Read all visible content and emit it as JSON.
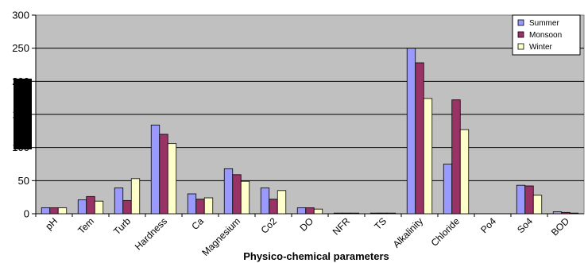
{
  "chart_data": {
    "type": "bar",
    "xlabel": "Physico-chemical parameters",
    "ylabel": "",
    "ylim": [
      0,
      300
    ],
    "yticks": [
      0,
      50,
      100,
      150,
      200,
      250,
      300
    ],
    "grid": true,
    "legend_position": "top-right",
    "categories": [
      "pH",
      "Tem",
      "Turb",
      "Hardness",
      "Ca",
      "Magnesium",
      "Co2",
      "DO",
      "NFR",
      "TS",
      "Alkalinity",
      "Chloride",
      "Po4",
      "So4",
      "BOD"
    ],
    "series": [
      {
        "name": "Summer",
        "color": "#9999ff",
        "values": [
          9,
          21,
          39,
          134,
          30,
          68,
          39,
          9,
          1,
          1,
          250,
          75,
          0,
          43,
          3
        ]
      },
      {
        "name": "Monsoon",
        "color": "#993366",
        "values": [
          9,
          26,
          20,
          120,
          22,
          59,
          22,
          9,
          1,
          1,
          228,
          172,
          0,
          42,
          2
        ]
      },
      {
        "name": "Winter",
        "color": "#ffffcc",
        "values": [
          9,
          19,
          53,
          106,
          24,
          49,
          35,
          7,
          1,
          1,
          174,
          127,
          0,
          28,
          1
        ]
      }
    ]
  }
}
